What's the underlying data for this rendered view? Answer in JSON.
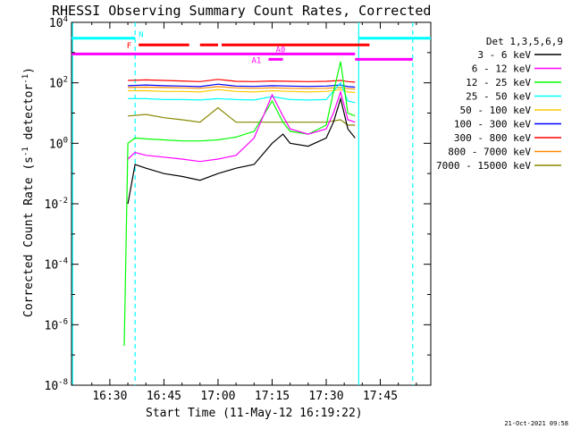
{
  "chart_data": {
    "type": "line",
    "title": "RHESSI Observing Summary Count Rates, Corrected",
    "xlabel": "Start Time (11-May-12 16:19:22)",
    "ylabel": "Corrected Count Rate (s",
    "ylabel_sup1": "-1",
    "ylabel_mid": " detector",
    "ylabel_sup2": "-1",
    "ylabel_end": ")",
    "ylog": true,
    "xlim": [
      "16:19:22",
      "17:59:00"
    ],
    "ylim": [
      1e-08,
      10000.0
    ],
    "x_ticks": [
      "16:30",
      "16:45",
      "17:00",
      "17:15",
      "17:30",
      "17:45"
    ],
    "y_ticks": [
      {
        "value": 1e-08,
        "base": "10",
        "exp": "-8"
      },
      {
        "value": 1e-06,
        "base": "10",
        "exp": "-6"
      },
      {
        "value": 0.0001,
        "base": "10",
        "exp": "-4"
      },
      {
        "value": 0.01,
        "base": "10",
        "exp": "-2"
      },
      {
        "value": 1,
        "base": "10",
        "exp": "0"
      },
      {
        "value": 100.0,
        "base": "10",
        "exp": "2"
      },
      {
        "value": 10000.0,
        "base": "10",
        "exp": "4"
      }
    ],
    "legend_title": "Det 1,3,5,6,9",
    "legend_position": "right",
    "series": [
      {
        "name": "3 - 6 keV",
        "color": "#000000",
        "x": [
          "16:35",
          "16:37",
          "16:40",
          "16:45",
          "16:50",
          "16:55",
          "17:00",
          "17:05",
          "17:10",
          "17:15",
          "17:18",
          "17:20",
          "17:25",
          "17:30",
          "17:32",
          "17:34",
          "17:36",
          "17:38"
        ],
        "values": [
          0.01,
          0.2,
          0.15,
          0.1,
          0.08,
          0.06,
          0.1,
          0.15,
          0.2,
          1.0,
          2.0,
          1.0,
          0.8,
          1.5,
          5,
          30,
          3,
          1.5
        ]
      },
      {
        "name": "6 - 12 keV",
        "color": "#ff00ff",
        "x": [
          "16:35",
          "16:37",
          "16:40",
          "16:45",
          "16:50",
          "16:55",
          "17:00",
          "17:05",
          "17:10",
          "17:15",
          "17:18",
          "17:20",
          "17:25",
          "17:30",
          "17:32",
          "17:34",
          "17:36",
          "17:38"
        ],
        "values": [
          0.3,
          0.5,
          0.4,
          0.35,
          0.3,
          0.25,
          0.3,
          0.4,
          1.5,
          40,
          8,
          3,
          2,
          3,
          10,
          50,
          6,
          5
        ]
      },
      {
        "name": "12 - 25 keV",
        "color": "#00ff00",
        "x": [
          "16:34",
          "16:35",
          "16:37",
          "16:40",
          "16:45",
          "16:50",
          "16:55",
          "17:00",
          "17:05",
          "17:10",
          "17:15",
          "17:18",
          "17:20",
          "17:25",
          "17:30",
          "17:32",
          "17:34",
          "17:36",
          "17:38"
        ],
        "values": [
          2e-07,
          1.0,
          1.5,
          1.4,
          1.3,
          1.2,
          1.2,
          1.3,
          1.6,
          2.5,
          25,
          5,
          2.5,
          2,
          4,
          50,
          500,
          10,
          8
        ]
      },
      {
        "name": "25 - 50 keV",
        "color": "#00ffff",
        "x": [
          "16:35",
          "16:40",
          "16:45",
          "16:50",
          "16:55",
          "17:00",
          "17:05",
          "17:10",
          "17:15",
          "17:20",
          "17:25",
          "17:30",
          "17:34",
          "17:36",
          "17:38"
        ],
        "values": [
          30,
          30,
          28,
          28,
          27,
          30,
          28,
          27,
          35,
          28,
          27,
          28,
          100,
          25,
          22
        ]
      },
      {
        "name": "50 - 100 keV",
        "color": "#ffcc00",
        "x": [
          "16:35",
          "16:40",
          "16:45",
          "16:50",
          "16:55",
          "17:00",
          "17:05",
          "17:10",
          "17:15",
          "17:20",
          "17:25",
          "17:30",
          "17:34",
          "17:36",
          "17:38"
        ],
        "values": [
          55,
          55,
          52,
          52,
          50,
          60,
          52,
          50,
          55,
          52,
          50,
          52,
          60,
          50,
          48
        ]
      },
      {
        "name": "100 - 300 keV",
        "color": "#0000ff",
        "x": [
          "16:35",
          "16:40",
          "16:45",
          "16:50",
          "16:55",
          "17:00",
          "17:05",
          "17:10",
          "17:15",
          "17:20",
          "17:25",
          "17:30",
          "17:34",
          "17:36",
          "17:38"
        ],
        "values": [
          80,
          85,
          80,
          78,
          75,
          90,
          78,
          76,
          80,
          78,
          76,
          78,
          85,
          75,
          72
        ]
      },
      {
        "name": "300 - 800 keV",
        "color": "#ff0000",
        "x": [
          "16:35",
          "16:40",
          "16:45",
          "16:50",
          "16:55",
          "17:00",
          "17:05",
          "17:10",
          "17:15",
          "17:20",
          "17:25",
          "17:30",
          "17:34",
          "17:36",
          "17:38"
        ],
        "values": [
          120,
          125,
          120,
          115,
          110,
          130,
          112,
          110,
          115,
          112,
          110,
          112,
          120,
          110,
          105
        ]
      },
      {
        "name": "800 - 7000 keV",
        "color": "#ff8800",
        "x": [
          "16:35",
          "16:40",
          "16:45",
          "16:50",
          "16:55",
          "17:00",
          "17:05",
          "17:10",
          "17:15",
          "17:20",
          "17:25",
          "17:30",
          "17:34",
          "17:36",
          "17:38"
        ],
        "values": [
          70,
          72,
          70,
          68,
          66,
          75,
          68,
          66,
          68,
          66,
          65,
          66,
          70,
          64,
          62
        ]
      },
      {
        "name": "7000 - 15000 keV",
        "color": "#888800",
        "x": [
          "16:35",
          "16:40",
          "16:45",
          "16:50",
          "16:55",
          "17:00",
          "17:05",
          "17:10",
          "17:15",
          "17:20",
          "17:25",
          "17:30",
          "17:34",
          "17:36",
          "17:38"
        ],
        "values": [
          8,
          9,
          7,
          6,
          5,
          15,
          5,
          5,
          5,
          5,
          5,
          5,
          6,
          4,
          4
        ]
      }
    ],
    "intervals": [
      {
        "label": "N",
        "color": "#00ffff",
        "value": 3000,
        "segments": [
          [
            "16:19:22",
            "16:37"
          ],
          [
            "17:39",
            "17:59"
          ]
        ]
      },
      {
        "label": "F",
        "color": "#ff0000",
        "value": 1800,
        "segments": [
          [
            "16:38",
            "16:52"
          ],
          [
            "16:55",
            "17:00"
          ],
          [
            "17:01",
            "17:42"
          ]
        ]
      },
      {
        "label": "",
        "color": "#ff00ff",
        "value": 900,
        "segments": [
          [
            "16:19:22",
            "17:38"
          ]
        ]
      },
      {
        "label": "A0",
        "color": "#ff00ff",
        "value": 900,
        "segments": []
      },
      {
        "label": "A1",
        "color": "#ff00ff",
        "value": 600,
        "segments": [
          [
            "17:14",
            "17:18"
          ],
          [
            "17:38",
            "17:54"
          ]
        ]
      }
    ],
    "vlines": [
      {
        "x": "16:19:40",
        "style": "solid",
        "color": "#00ffff"
      },
      {
        "x": "16:37",
        "style": "dashed",
        "color": "#00ffff"
      },
      {
        "x": "17:39",
        "style": "solid",
        "color": "#00ffff"
      },
      {
        "x": "17:54",
        "style": "dashed",
        "color": "#00ffff"
      }
    ]
  },
  "footer_date": "21-Oct-2021 09:58"
}
